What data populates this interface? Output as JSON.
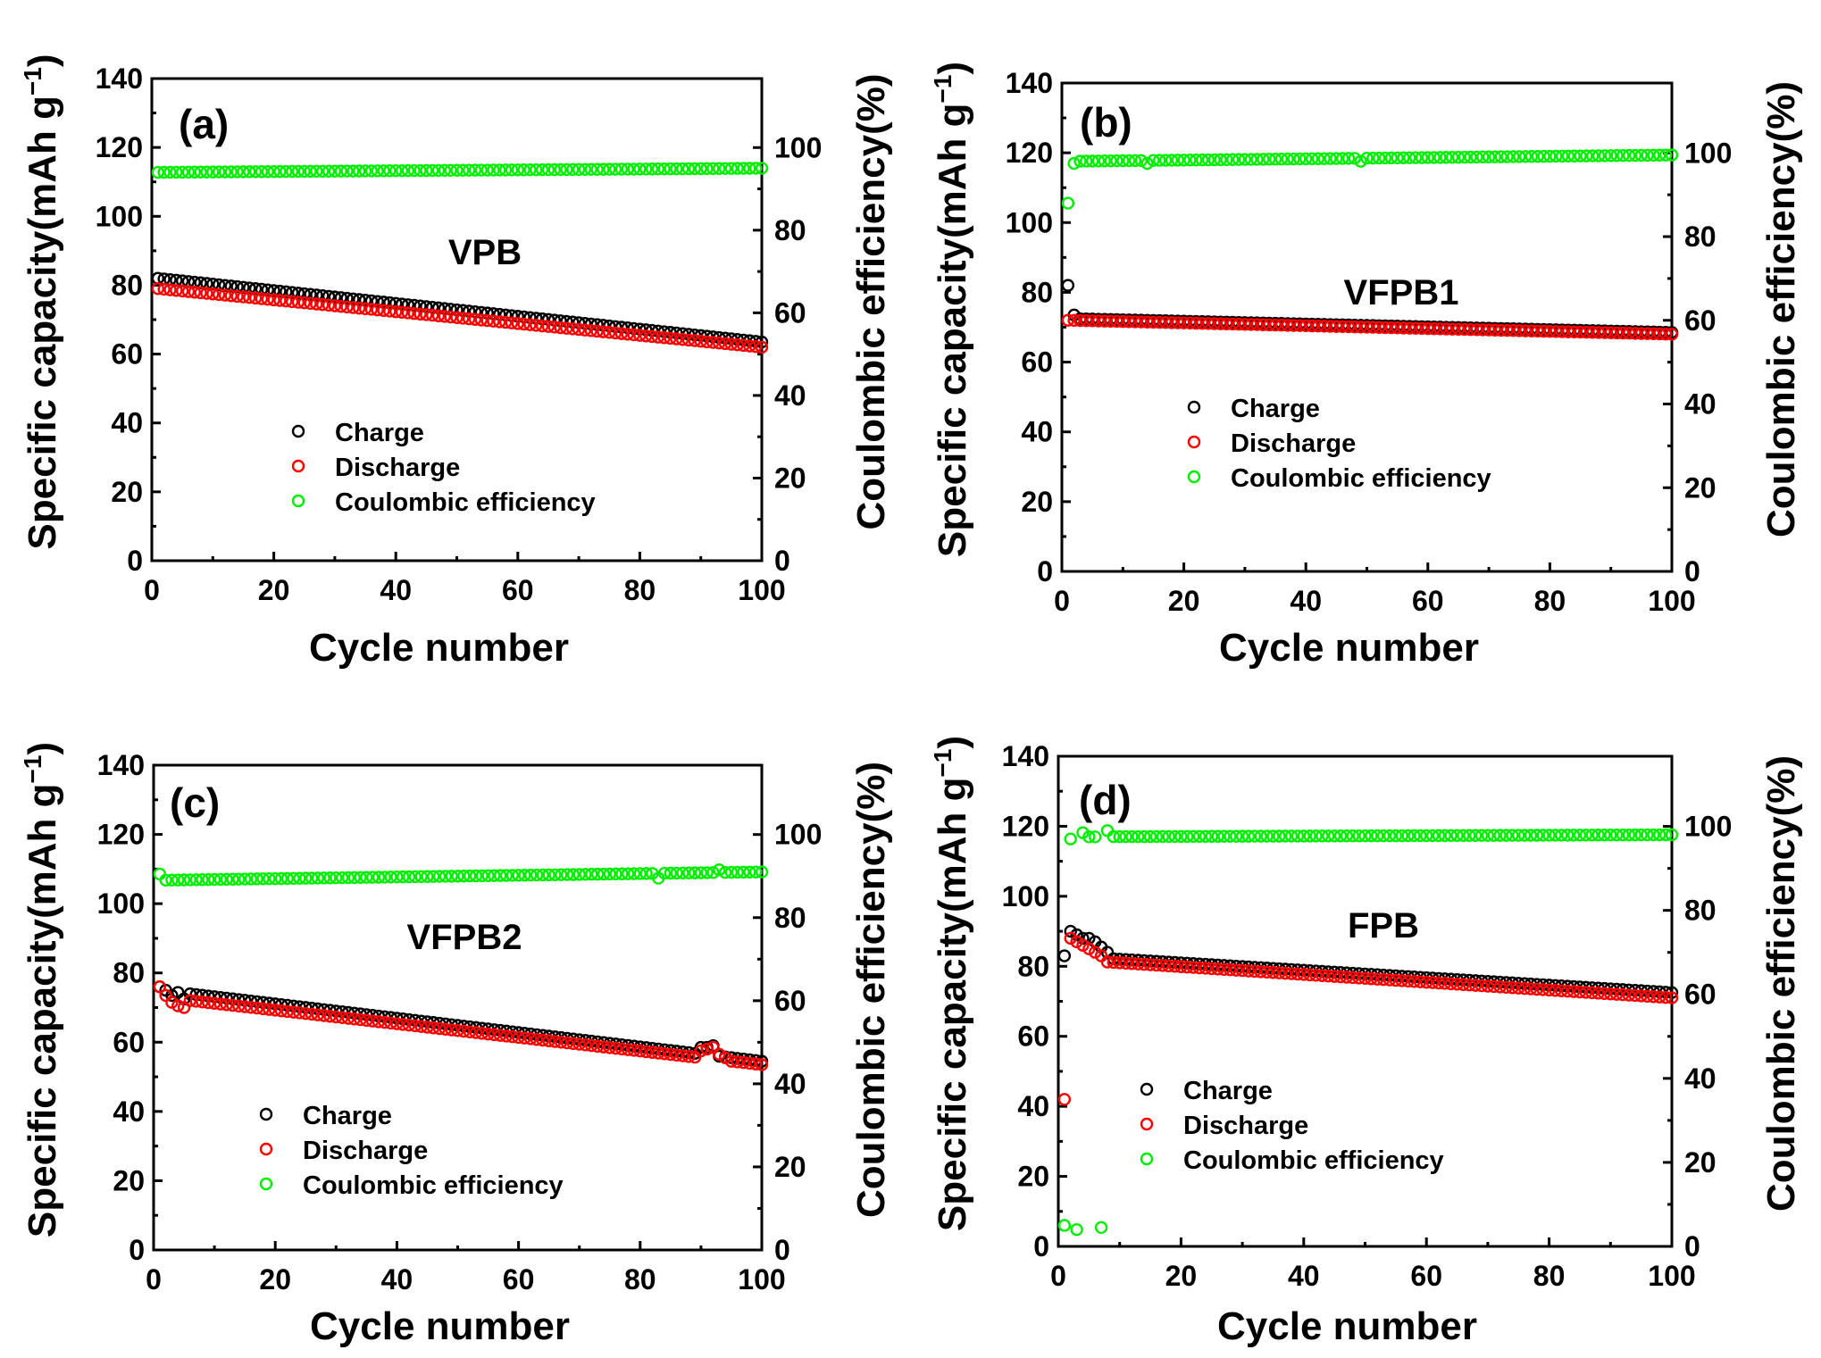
{
  "chart_data": [
    {
      "type": "scatter",
      "panel_label": "(a)",
      "sample": "VPB",
      "xlabel": "Cycle number",
      "ylabel": "Specific capacity(mAh g",
      "ylabel_sup": "−1",
      "ylabel_close": ")",
      "y2label": "Coulombic efficiency(%)",
      "xlim": [
        0,
        100
      ],
      "ylim": [
        0,
        140
      ],
      "y2lim": [
        0,
        116.7
      ],
      "xticks": [
        0,
        20,
        40,
        60,
        80,
        100
      ],
      "yticks": [
        0,
        20,
        40,
        60,
        80,
        100,
        120,
        140
      ],
      "y2ticks": [
        0,
        20,
        40,
        60,
        80,
        100
      ],
      "legend": [
        "Charge",
        "Discharge",
        "Coulombic efficiency"
      ],
      "series": [
        {
          "name": "Charge",
          "axis": "left",
          "color": "#000000",
          "start": 82,
          "end": 63.5,
          "points": []
        },
        {
          "name": "Discharge",
          "axis": "left",
          "color": "#ff0000",
          "start": 79,
          "end": 62,
          "points": []
        },
        {
          "name": "Coulombic efficiency",
          "axis": "right",
          "color": "#00ee00",
          "start": 94,
          "end": 95,
          "points": []
        }
      ]
    },
    {
      "type": "scatter",
      "panel_label": "(b)",
      "sample": "VFPB1",
      "xlabel": "Cycle number",
      "ylabel": "Specific capacity(mAh g",
      "ylabel_sup": "−1",
      "ylabel_close": ")",
      "y2label": "Coulombic efficiency(%)",
      "xlim": [
        0,
        100
      ],
      "ylim": [
        0,
        140
      ],
      "y2lim": [
        0,
        116.7
      ],
      "xticks": [
        0,
        20,
        40,
        60,
        80,
        100
      ],
      "yticks": [
        0,
        20,
        40,
        60,
        80,
        100,
        120,
        140
      ],
      "y2ticks": [
        0,
        20,
        40,
        60,
        80,
        100
      ],
      "legend": [
        "Charge",
        "Discharge",
        "Coulombic efficiency"
      ],
      "series": [
        {
          "name": "Charge",
          "axis": "left",
          "color": "#000000",
          "start": 72.5,
          "end": 68.5,
          "points": [
            [
              1,
              82
            ],
            [
              2,
              73.5
            ]
          ]
        },
        {
          "name": "Discharge",
          "axis": "left",
          "color": "#ff0000",
          "start": 72,
          "end": 68,
          "points": []
        },
        {
          "name": "Coulombic efficiency",
          "axis": "right",
          "color": "#00ee00",
          "start": 98,
          "end": 99.5,
          "points": [
            [
              1,
              88
            ],
            [
              2,
              97.5
            ],
            [
              14,
              97.5
            ],
            [
              49,
              98
            ]
          ]
        }
      ]
    },
    {
      "type": "scatter",
      "panel_label": "(c)",
      "sample": "VFPB2",
      "xlabel": "Cycle number",
      "ylabel": "Specific capacity(mAh g",
      "ylabel_sup": "−1",
      "ylabel_close": ")",
      "y2label": "Coulombic efficiency(%)",
      "xlim": [
        0,
        100
      ],
      "ylim": [
        0,
        140
      ],
      "y2lim": [
        0,
        116.7
      ],
      "xticks": [
        0,
        20,
        40,
        60,
        80,
        100
      ],
      "yticks": [
        0,
        20,
        40,
        60,
        80,
        100,
        120,
        140
      ],
      "y2ticks": [
        0,
        20,
        40,
        60,
        80,
        100
      ],
      "legend": [
        "Charge",
        "Discharge",
        "Coulombic efficiency"
      ],
      "series": [
        {
          "name": "Charge",
          "axis": "left",
          "color": "#000000",
          "start": 75,
          "end": 54.5,
          "points": [
            [
              1,
              76
            ],
            [
              2,
              75
            ],
            [
              3,
              73.5
            ],
            [
              5,
              72.5
            ],
            [
              90,
              58.5
            ],
            [
              91,
              58.5
            ],
            [
              92,
              59
            ]
          ]
        },
        {
          "name": "Discharge",
          "axis": "left",
          "color": "#ff0000",
          "start": 73,
          "end": 53.5,
          "points": [
            [
              1,
              76
            ],
            [
              2,
              73.5
            ],
            [
              3,
              71.5
            ],
            [
              4,
              70.5
            ],
            [
              5,
              70
            ],
            [
              90,
              57.5
            ],
            [
              91,
              58
            ],
            [
              92,
              58.5
            ],
            [
              93,
              56.5
            ],
            [
              94,
              55.5
            ]
          ]
        },
        {
          "name": "Coulombic efficiency",
          "axis": "right",
          "color": "#00ee00",
          "start": 89,
          "end": 91,
          "points": [
            [
              1,
              90.5
            ],
            [
              83,
              89.5
            ],
            [
              93,
              91.5
            ]
          ]
        }
      ]
    },
    {
      "type": "scatter",
      "panel_label": "(d)",
      "sample": "FPB",
      "xlabel": "Cycle number",
      "ylabel": "Specific capacity(mAh g",
      "ylabel_sup": "−1",
      "ylabel_close": ")",
      "y2label": "Coulombic efficiency(%)",
      "xlim": [
        0,
        100
      ],
      "ylim": [
        0,
        140
      ],
      "y2lim": [
        0,
        116.7
      ],
      "xticks": [
        0,
        20,
        40,
        60,
        80,
        100
      ],
      "yticks": [
        0,
        20,
        40,
        60,
        80,
        100,
        120,
        140
      ],
      "y2ticks": [
        0,
        20,
        40,
        60,
        80,
        100
      ],
      "legend": [
        "Charge",
        "Discharge",
        "Coulombic efficiency"
      ],
      "series": [
        {
          "name": "Charge",
          "axis": "left",
          "color": "#000000",
          "start": 83,
          "end": 72.5,
          "points": [
            [
              2,
              90
            ],
            [
              3,
              89
            ],
            [
              4,
              88
            ],
            [
              5,
              88
            ],
            [
              6,
              87
            ],
            [
              7,
              85.5
            ],
            [
              8,
              84
            ]
          ]
        },
        {
          "name": "Discharge",
          "axis": "left",
          "color": "#ff0000",
          "start": 82,
          "end": 71,
          "points": [
            [
              1,
              42
            ],
            [
              2,
              88
            ],
            [
              3,
              87
            ],
            [
              4,
              86
            ],
            [
              5,
              85
            ],
            [
              6,
              84
            ],
            [
              7,
              83
            ]
          ]
        },
        {
          "name": "Coulombic efficiency",
          "axis": "right",
          "color": "#00ee00",
          "start": 97.5,
          "end": 98,
          "points": [
            [
              1,
              5
            ],
            [
              2,
              97
            ],
            [
              3,
              4
            ],
            [
              4,
              98.5
            ],
            [
              5,
              97.5
            ],
            [
              6,
              97.5
            ],
            [
              7,
              4.5
            ],
            [
              8,
              99
            ]
          ]
        }
      ]
    }
  ]
}
